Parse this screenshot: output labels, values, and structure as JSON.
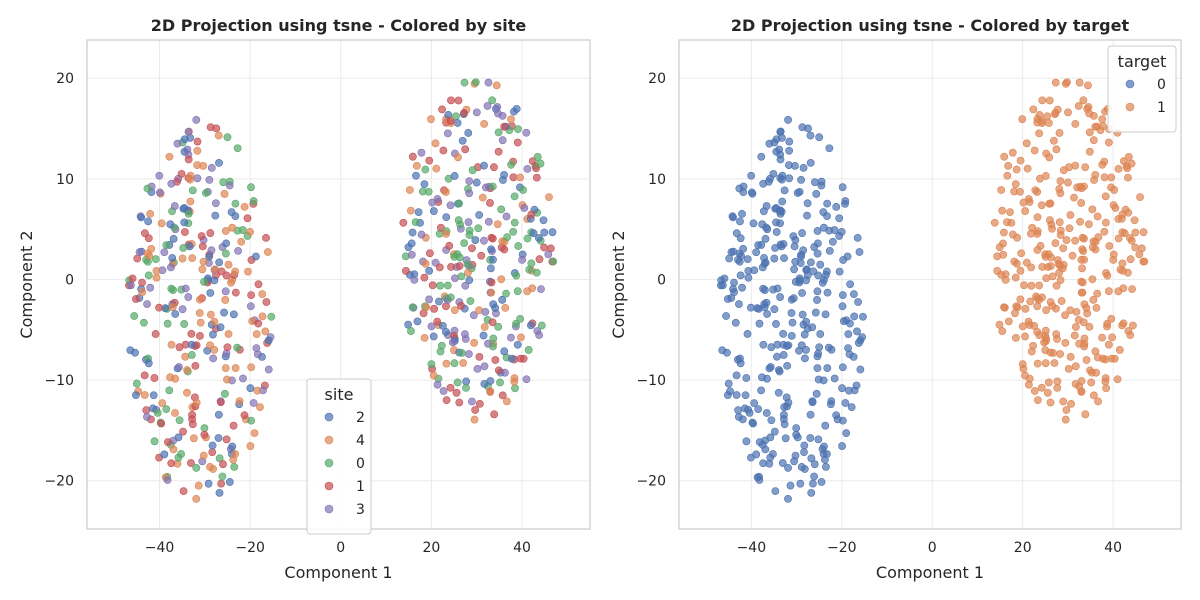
{
  "chart_data": [
    {
      "type": "scatter",
      "title": "2D Projection using tsne - Colored by site",
      "xlabel": "Component 1",
      "ylabel": "Component 2",
      "xlim": [
        -56,
        55
      ],
      "ylim": [
        -24.8,
        23.8
      ],
      "xticks": [
        -40,
        -20,
        0,
        20,
        40
      ],
      "yticks": [
        -20,
        -10,
        0,
        10,
        20
      ],
      "grid": true,
      "legend": {
        "title": "site",
        "placement": "lower-center",
        "order": [
          "2",
          "4",
          "0",
          "1",
          "3"
        ]
      },
      "series": [
        {
          "name": "2",
          "color": "#4c72b0"
        },
        {
          "name": "4",
          "color": "#dd8452"
        },
        {
          "name": "0",
          "color": "#55a868"
        },
        {
          "name": "1",
          "color": "#c44e52"
        },
        {
          "name": "3",
          "color": "#8172b3"
        }
      ],
      "clusters": [
        {
          "cx": -31,
          "cy": -3,
          "rx": 16,
          "ry": 19,
          "n": 340,
          "seed": 11
        },
        {
          "cx": 30,
          "cy": 3,
          "rx": 17,
          "ry": 17,
          "n": 340,
          "seed": 29
        }
      ]
    },
    {
      "type": "scatter",
      "title": "2D Projection using tsne - Colored by target",
      "xlabel": "Component 1",
      "ylabel": "Component 2",
      "xlim": [
        -56,
        55
      ],
      "ylim": [
        -24.8,
        23.8
      ],
      "xticks": [
        -40,
        -20,
        0,
        20,
        40
      ],
      "yticks": [
        -20,
        -10,
        0,
        10,
        20
      ],
      "grid": true,
      "legend": {
        "title": "target",
        "placement": "top-right",
        "order": [
          "0",
          "1"
        ]
      },
      "series": [
        {
          "name": "0",
          "color": "#4c72b0"
        },
        {
          "name": "1",
          "color": "#dd8452"
        }
      ],
      "clusters": [
        {
          "cx": -31,
          "cy": -3,
          "rx": 16,
          "ry": 19,
          "n": 340,
          "seed": 11,
          "series": "0"
        },
        {
          "cx": 30,
          "cy": 3,
          "rx": 17,
          "ry": 17,
          "n": 340,
          "seed": 29,
          "series": "1"
        }
      ]
    }
  ]
}
